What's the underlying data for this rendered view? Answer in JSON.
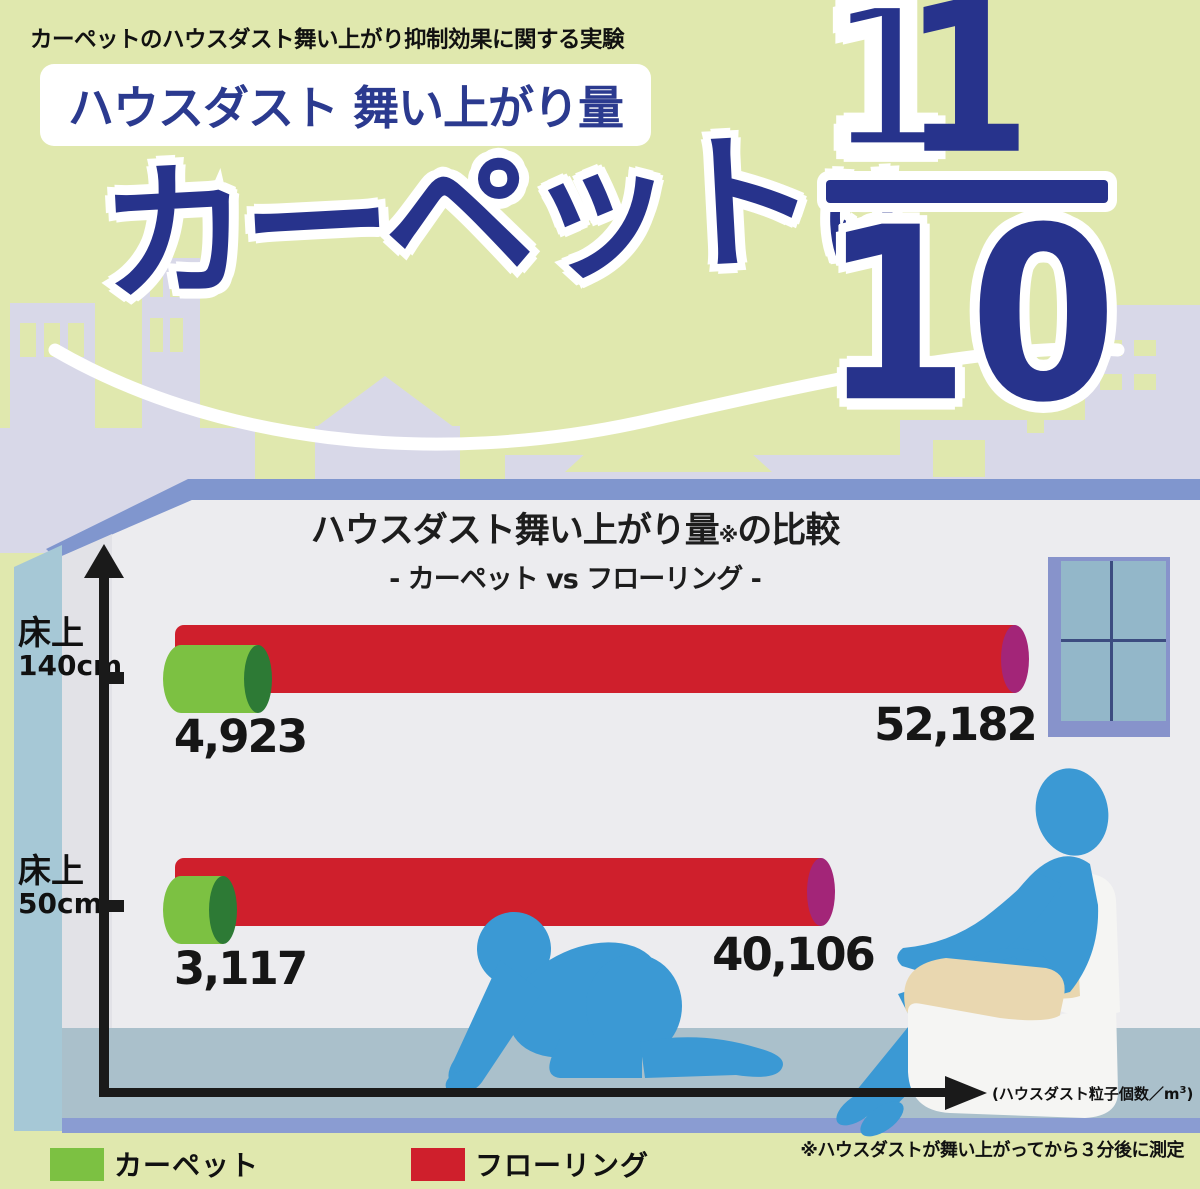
{
  "note": "カーペットのハウスダスト舞い上がり抑制効果に関する実験",
  "header": {
    "badge": "ハウスダスト 舞い上がり量",
    "headline_main": "カーペット",
    "headline_particle": "は",
    "fraction_numerator": "1",
    "fraction_denominator": "10"
  },
  "chart": {
    "title_main": "ハウスダスト舞い上がり量",
    "title_mark": "※",
    "title_tail": "の比較",
    "subtitle": "- カーペット vs フローリング -",
    "rows": [
      {
        "floor_label": "床上",
        "height_label": "140cm",
        "carpet_value": "4,923",
        "flooring_value": "52,182"
      },
      {
        "floor_label": "床上",
        "height_label": "50cm",
        "carpet_value": "3,117",
        "flooring_value": "40,106"
      }
    ],
    "axis_unit_prefix": "(ハウスダスト粒子個数／m",
    "axis_unit_sup": "3",
    "axis_unit_suffix": ")"
  },
  "legend": {
    "carpet": "カーペット",
    "flooring": "フローリング"
  },
  "footnote": "※ハウスダストが舞い上がってから３分後に測定",
  "colors": {
    "background_green": "#e0e8ae",
    "skyline_lavender": "#d8d8e8",
    "room_band_purple": "#8096ce",
    "wall_grey": "#ececef",
    "floor_blue_grey": "#aac0cb",
    "carpet_green": "#7cc142",
    "carpet_cap_green": "#2d7a35",
    "flooring_red": "#cf1f2c",
    "flooring_cap_magenta": "#a32578",
    "headline_navy": "#27338c",
    "silhouette_blue": "#3b99d4",
    "sofa_white": "#f5f5f3",
    "sofa_tan": "#e9d7b0"
  },
  "chart_data": {
    "type": "bar",
    "orientation": "horizontal",
    "title": "ハウスダスト舞い上がり量※の比較",
    "subtitle": "- カーペット vs フローリング -",
    "categories": [
      "床上140cm",
      "床上50cm"
    ],
    "series": [
      {
        "name": "カーペット",
        "values": [
          4923,
          3117
        ],
        "color": "#7cc142"
      },
      {
        "name": "フローリング",
        "values": [
          52182,
          40106
        ],
        "color": "#cf1f2c"
      }
    ],
    "xlabel": "ハウスダスト粒子個数／m³",
    "note": "※ハウスダストが舞い上がってから３分後に測定",
    "headline_claim": "カーペットは 1/10"
  }
}
